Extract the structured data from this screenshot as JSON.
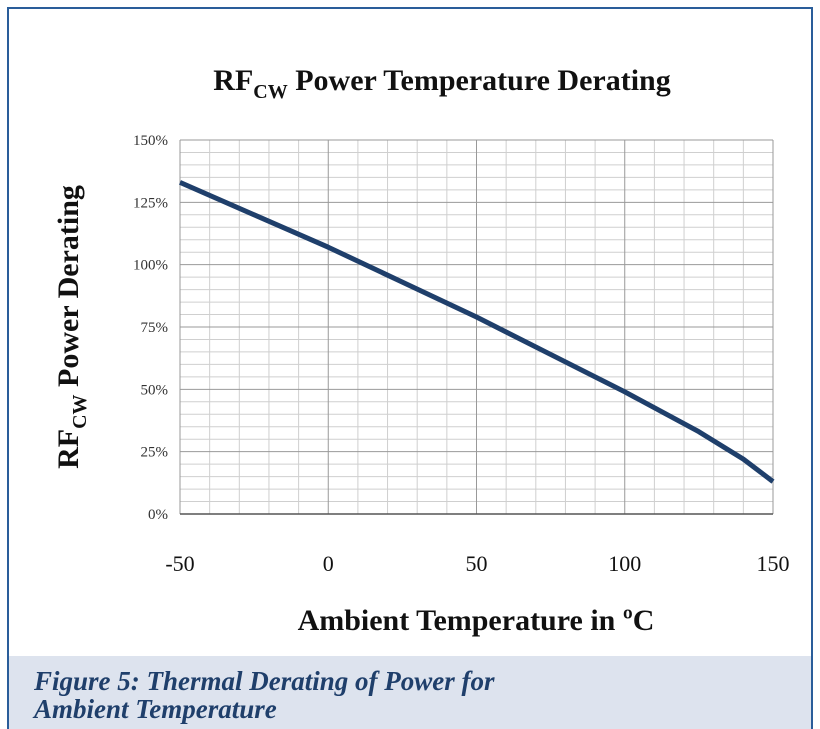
{
  "chart_data": {
    "type": "line",
    "title_parts": [
      "RF",
      "CW",
      " Power Temperature Derating"
    ],
    "ylabel_parts": [
      "RF",
      "CW",
      " Power Derating"
    ],
    "xlabel": "Ambient Temperature in ºC",
    "caption": "Figure 5: Thermal Derating of Power for Ambient Temperature",
    "x": [
      -50,
      -25,
      0,
      25,
      50,
      75,
      100,
      125,
      140,
      150
    ],
    "series": [
      {
        "name": "Power Derating",
        "color": "#1f3f6b",
        "values": [
          133,
          120,
          107,
          93,
          79,
          64,
          49,
          33,
          22,
          13
        ]
      }
    ],
    "xlim": [
      -50,
      150
    ],
    "ylim": [
      0,
      150
    ],
    "xticks": [
      -50,
      0,
      50,
      100,
      150
    ],
    "yticks": [
      {
        "value": 0,
        "label": "0%"
      },
      {
        "value": 25,
        "label": "25%"
      },
      {
        "value": 50,
        "label": "50%"
      },
      {
        "value": 75,
        "label": "75%"
      },
      {
        "value": 100,
        "label": "100%"
      },
      {
        "value": 125,
        "label": "125%"
      },
      {
        "value": 150,
        "label": "150%"
      }
    ],
    "minor_xticks": [
      -40,
      -30,
      -20,
      -10,
      10,
      20,
      30,
      40,
      60,
      70,
      80,
      90,
      110,
      120,
      130,
      140
    ],
    "minor_yticks": [
      5,
      10,
      15,
      20,
      30,
      35,
      40,
      45,
      55,
      60,
      65,
      70,
      80,
      85,
      90,
      95,
      105,
      110,
      115,
      120,
      130,
      135,
      140,
      145
    ],
    "grid": true
  }
}
